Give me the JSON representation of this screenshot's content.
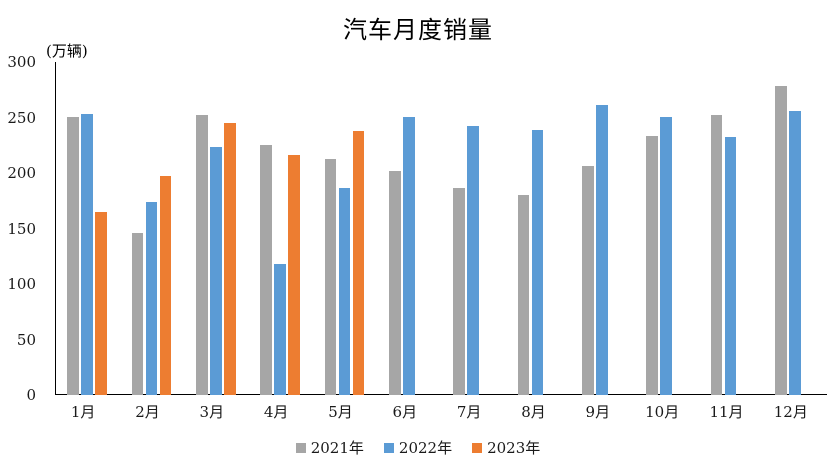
{
  "chart_data": {
    "type": "bar",
    "title": "汽车月度销量",
    "unit_label": "(万辆)",
    "categories": [
      "1月",
      "2月",
      "3月",
      "4月",
      "5月",
      "6月",
      "7月",
      "8月",
      "9月",
      "10月",
      "11月",
      "12月"
    ],
    "series": [
      {
        "name": "2021年",
        "color": "#A6A6A6",
        "values": [
          250.3,
          145.5,
          252.6,
          225.2,
          212.8,
          201.5,
          186.4,
          179.9,
          206.7,
          233.3,
          252.2,
          278.6
        ]
      },
      {
        "name": "2022年",
        "color": "#5B9BD5",
        "values": [
          253.1,
          173.7,
          223.4,
          118.1,
          186.2,
          250.2,
          242.0,
          238.3,
          261.0,
          250.5,
          232.8,
          255.7
        ]
      },
      {
        "name": "2023年",
        "color": "#ED7D31",
        "values": [
          164.9,
          197.6,
          245.1,
          215.9,
          238.2,
          null,
          null,
          null,
          null,
          null,
          null,
          null
        ]
      }
    ],
    "y_axis": {
      "min": 0,
      "max": 300,
      "tick_step": 50,
      "ticks": [
        0,
        50,
        100,
        150,
        200,
        250,
        300
      ]
    },
    "grid": false,
    "legend_position": "bottom",
    "legend_entries": [
      "2021年",
      "2022年",
      "2023年"
    ]
  }
}
